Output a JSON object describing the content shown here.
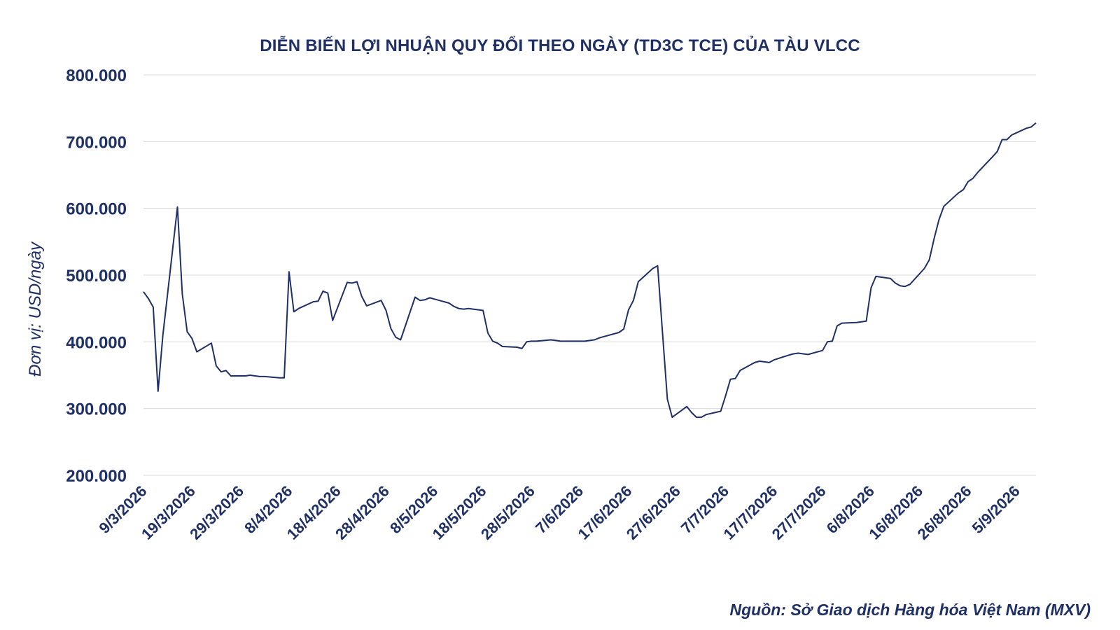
{
  "chart_data": {
    "type": "line",
    "title": "DIỄN BIẾN LỢI NHUẬN QUY ĐỔI THEO NGÀY (TD3C TCE) CỦA TÀU VLCC",
    "xlabel": "",
    "ylabel": "Đơn vị: USD/ngày",
    "ylim": [
      200000,
      800000
    ],
    "yticks": [
      200000,
      300000,
      400000,
      500000,
      600000,
      700000,
      800000
    ],
    "ytick_labels": [
      "200.000",
      "300.000",
      "400.000",
      "500.000",
      "600.000",
      "700.000",
      "800.000"
    ],
    "xlim": [
      "2026-03-09",
      "2026-09-09"
    ],
    "xticks": [
      "2026-03-09",
      "2026-03-19",
      "2026-03-29",
      "2026-04-08",
      "2026-04-18",
      "2026-04-28",
      "2026-05-08",
      "2026-05-18",
      "2026-05-28",
      "2026-06-07",
      "2026-06-17",
      "2026-06-27",
      "2026-07-07",
      "2026-07-17",
      "2026-07-27",
      "2026-08-06",
      "2026-08-16",
      "2026-08-26",
      "2026-09-05"
    ],
    "xtick_labels": [
      "9/3/2026",
      "19/3/2026",
      "29/3/2026",
      "8/4/2026",
      "18/4/2026",
      "28/4/2026",
      "8/5/2026",
      "18/5/2026",
      "28/5/2026",
      "7/6/2026",
      "17/6/2026",
      "27/6/2026",
      "7/7/2026",
      "17/7/2026",
      "27/7/2026",
      "6/8/2026",
      "16/8/2026",
      "26/8/2026",
      "5/9/2026"
    ],
    "grid": "horizontal",
    "legend": "none",
    "line_color": "#1f3066",
    "series": [
      {
        "x": [
          "2026-03-09",
          "2026-03-10",
          "2026-03-11",
          "2026-03-12",
          "2026-03-13",
          "2026-03-16",
          "2026-03-17",
          "2026-03-18",
          "2026-03-19",
          "2026-03-20",
          "2026-03-23",
          "2026-03-24",
          "2026-03-25",
          "2026-03-26",
          "2026-03-27",
          "2026-03-30",
          "2026-03-31",
          "2026-04-01",
          "2026-04-02",
          "2026-04-03",
          "2026-04-06",
          "2026-04-07",
          "2026-04-08",
          "2026-04-09",
          "2026-04-10",
          "2026-04-13",
          "2026-04-14",
          "2026-04-15",
          "2026-04-16",
          "2026-04-17",
          "2026-04-20",
          "2026-04-21",
          "2026-04-22",
          "2026-04-23",
          "2026-04-24",
          "2026-04-27",
          "2026-04-28",
          "2026-04-29",
          "2026-04-30",
          "2026-05-01",
          "2026-05-04",
          "2026-05-05",
          "2026-05-06",
          "2026-05-07",
          "2026-05-08",
          "2026-05-11",
          "2026-05-12",
          "2026-05-13",
          "2026-05-14",
          "2026-05-15",
          "2026-05-18",
          "2026-05-19",
          "2026-05-20",
          "2026-05-21",
          "2026-05-22",
          "2026-05-25",
          "2026-05-26",
          "2026-05-27",
          "2026-05-28",
          "2026-05-29",
          "2026-06-01",
          "2026-06-02",
          "2026-06-03",
          "2026-06-04",
          "2026-06-05",
          "2026-06-08",
          "2026-06-09",
          "2026-06-10",
          "2026-06-11",
          "2026-06-12",
          "2026-06-15",
          "2026-06-16",
          "2026-06-17",
          "2026-06-18",
          "2026-06-19",
          "2026-06-22",
          "2026-06-23",
          "2026-06-24",
          "2026-06-25",
          "2026-06-26",
          "2026-06-29",
          "2026-06-30",
          "2026-07-01",
          "2026-07-02",
          "2026-07-03",
          "2026-07-06",
          "2026-07-07",
          "2026-07-08",
          "2026-07-09",
          "2026-07-10",
          "2026-07-13",
          "2026-07-14",
          "2026-07-15",
          "2026-07-16",
          "2026-07-17",
          "2026-07-20",
          "2026-07-21",
          "2026-07-22",
          "2026-07-23",
          "2026-07-24",
          "2026-07-27",
          "2026-07-28",
          "2026-07-29",
          "2026-07-30",
          "2026-07-31",
          "2026-08-03",
          "2026-08-04",
          "2026-08-05",
          "2026-08-06",
          "2026-08-07",
          "2026-08-10",
          "2026-08-11",
          "2026-08-12",
          "2026-08-13",
          "2026-08-14",
          "2026-08-17",
          "2026-08-18",
          "2026-08-19",
          "2026-08-20",
          "2026-08-21",
          "2026-08-24",
          "2026-08-25",
          "2026-08-26",
          "2026-08-27",
          "2026-08-28",
          "2026-08-31",
          "2026-09-01",
          "2026-09-02",
          "2026-09-03",
          "2026-09-04",
          "2026-09-07",
          "2026-09-08",
          "2026-09-09"
        ],
        "values": [
          475000,
          465000,
          452000,
          326000,
          410000,
          602000,
          472000,
          415000,
          405000,
          385000,
          398000,
          364000,
          355000,
          357000,
          349000,
          349000,
          350000,
          349000,
          348000,
          348000,
          346000,
          346000,
          505000,
          445000,
          450000,
          460000,
          461000,
          476000,
          473000,
          432000,
          489000,
          488000,
          490000,
          468000,
          454000,
          462000,
          447000,
          420000,
          407000,
          403000,
          467000,
          462000,
          463000,
          466000,
          464000,
          458000,
          453000,
          450000,
          449000,
          450000,
          447000,
          413000,
          401000,
          398000,
          393000,
          392000,
          390000,
          400000,
          401000,
          401000,
          403000,
          402000,
          401000,
          401000,
          401000,
          401000,
          402000,
          403000,
          406000,
          408000,
          414000,
          419000,
          448000,
          462000,
          490000,
          510000,
          514000,
          414000,
          314000,
          287000,
          303000,
          294000,
          287000,
          287000,
          291000,
          296000,
          319000,
          344000,
          345000,
          357000,
          369000,
          371000,
          370000,
          369000,
          373000,
          380000,
          382000,
          383000,
          382000,
          381000,
          387000,
          400000,
          401000,
          424000,
          428000,
          429000,
          430000,
          431000,
          481000,
          498000,
          495000,
          488000,
          484000,
          483000,
          486000,
          510000,
          523000,
          555000,
          583000,
          603000,
          623000,
          628000,
          640000,
          645000,
          654000,
          677000,
          685000,
          703000,
          703000,
          710000,
          720000,
          722000,
          728000
        ]
      }
    ],
    "source_note": "Nguồn: Sở Giao dịch Hàng hóa Việt Nam (MXV)"
  }
}
